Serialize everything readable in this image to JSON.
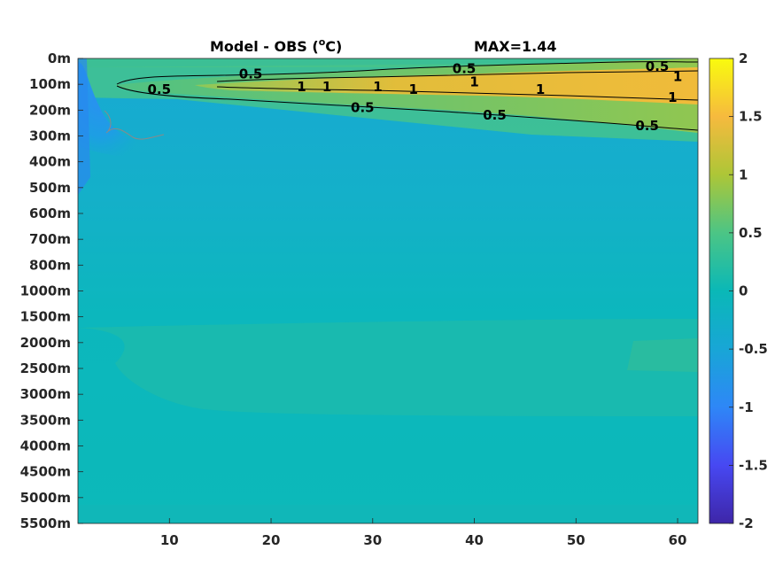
{
  "chart_data": {
    "type": "heatmap",
    "title": "Model - OBS (",
    "title_unit_sup": "o",
    "title_unit_rest": "C)",
    "max_label": "MAX=1.44",
    "x": {
      "range": [
        1,
        62
      ],
      "ticks": [
        10,
        20,
        30,
        40,
        50,
        60
      ],
      "tick_labels": [
        "10",
        "20",
        "30",
        "40",
        "50",
        "60"
      ]
    },
    "y": {
      "tick_labels": [
        "0m",
        "100m",
        "200m",
        "300m",
        "400m",
        "500m",
        "600m",
        "700m",
        "800m",
        "1000m",
        "1500m",
        "2000m",
        "2500m",
        "3000m",
        "3500m",
        "4000m",
        "4500m",
        "5000m",
        "5500m"
      ],
      "reversed": true
    },
    "colorbar": {
      "range": [
        -2,
        2
      ],
      "ticks": [
        2,
        1.5,
        1,
        0.5,
        0,
        -0.5,
        -1,
        -1.5,
        -2
      ],
      "tick_labels": [
        "2",
        "1.5",
        "1",
        "0.5",
        "0",
        "-0.5",
        "-1",
        "-1.5",
        "-2"
      ],
      "colormap": "parula"
    },
    "contour_levels": [
      0.5,
      1
    ],
    "contour_labels": [
      {
        "text": "0.5",
        "x": 18,
        "depth_index": 0.6
      },
      {
        "text": "0.5",
        "x": 39,
        "depth_index": 0.4
      },
      {
        "text": "0.5",
        "x": 58,
        "depth_index": 0.3
      },
      {
        "text": "0.5",
        "x": 9,
        "depth_index": 1.2
      },
      {
        "text": "1",
        "x": 60,
        "depth_index": 0.7
      },
      {
        "text": "1",
        "x": 23,
        "depth_index": 1.1
      },
      {
        "text": "1",
        "x": 25.5,
        "depth_index": 1.1
      },
      {
        "text": "1",
        "x": 30.5,
        "depth_index": 1.1
      },
      {
        "text": "1",
        "x": 34,
        "depth_index": 1.2
      },
      {
        "text": "1",
        "x": 40,
        "depth_index": 0.9
      },
      {
        "text": "1",
        "x": 46.5,
        "depth_index": 1.2
      },
      {
        "text": "1",
        "x": 59.5,
        "depth_index": 1.5
      },
      {
        "text": "0.5",
        "x": 29,
        "depth_index": 1.9
      },
      {
        "text": "0.5",
        "x": 42,
        "depth_index": 2.2
      },
      {
        "text": "0.5",
        "x": 57,
        "depth_index": 2.6
      }
    ]
  }
}
